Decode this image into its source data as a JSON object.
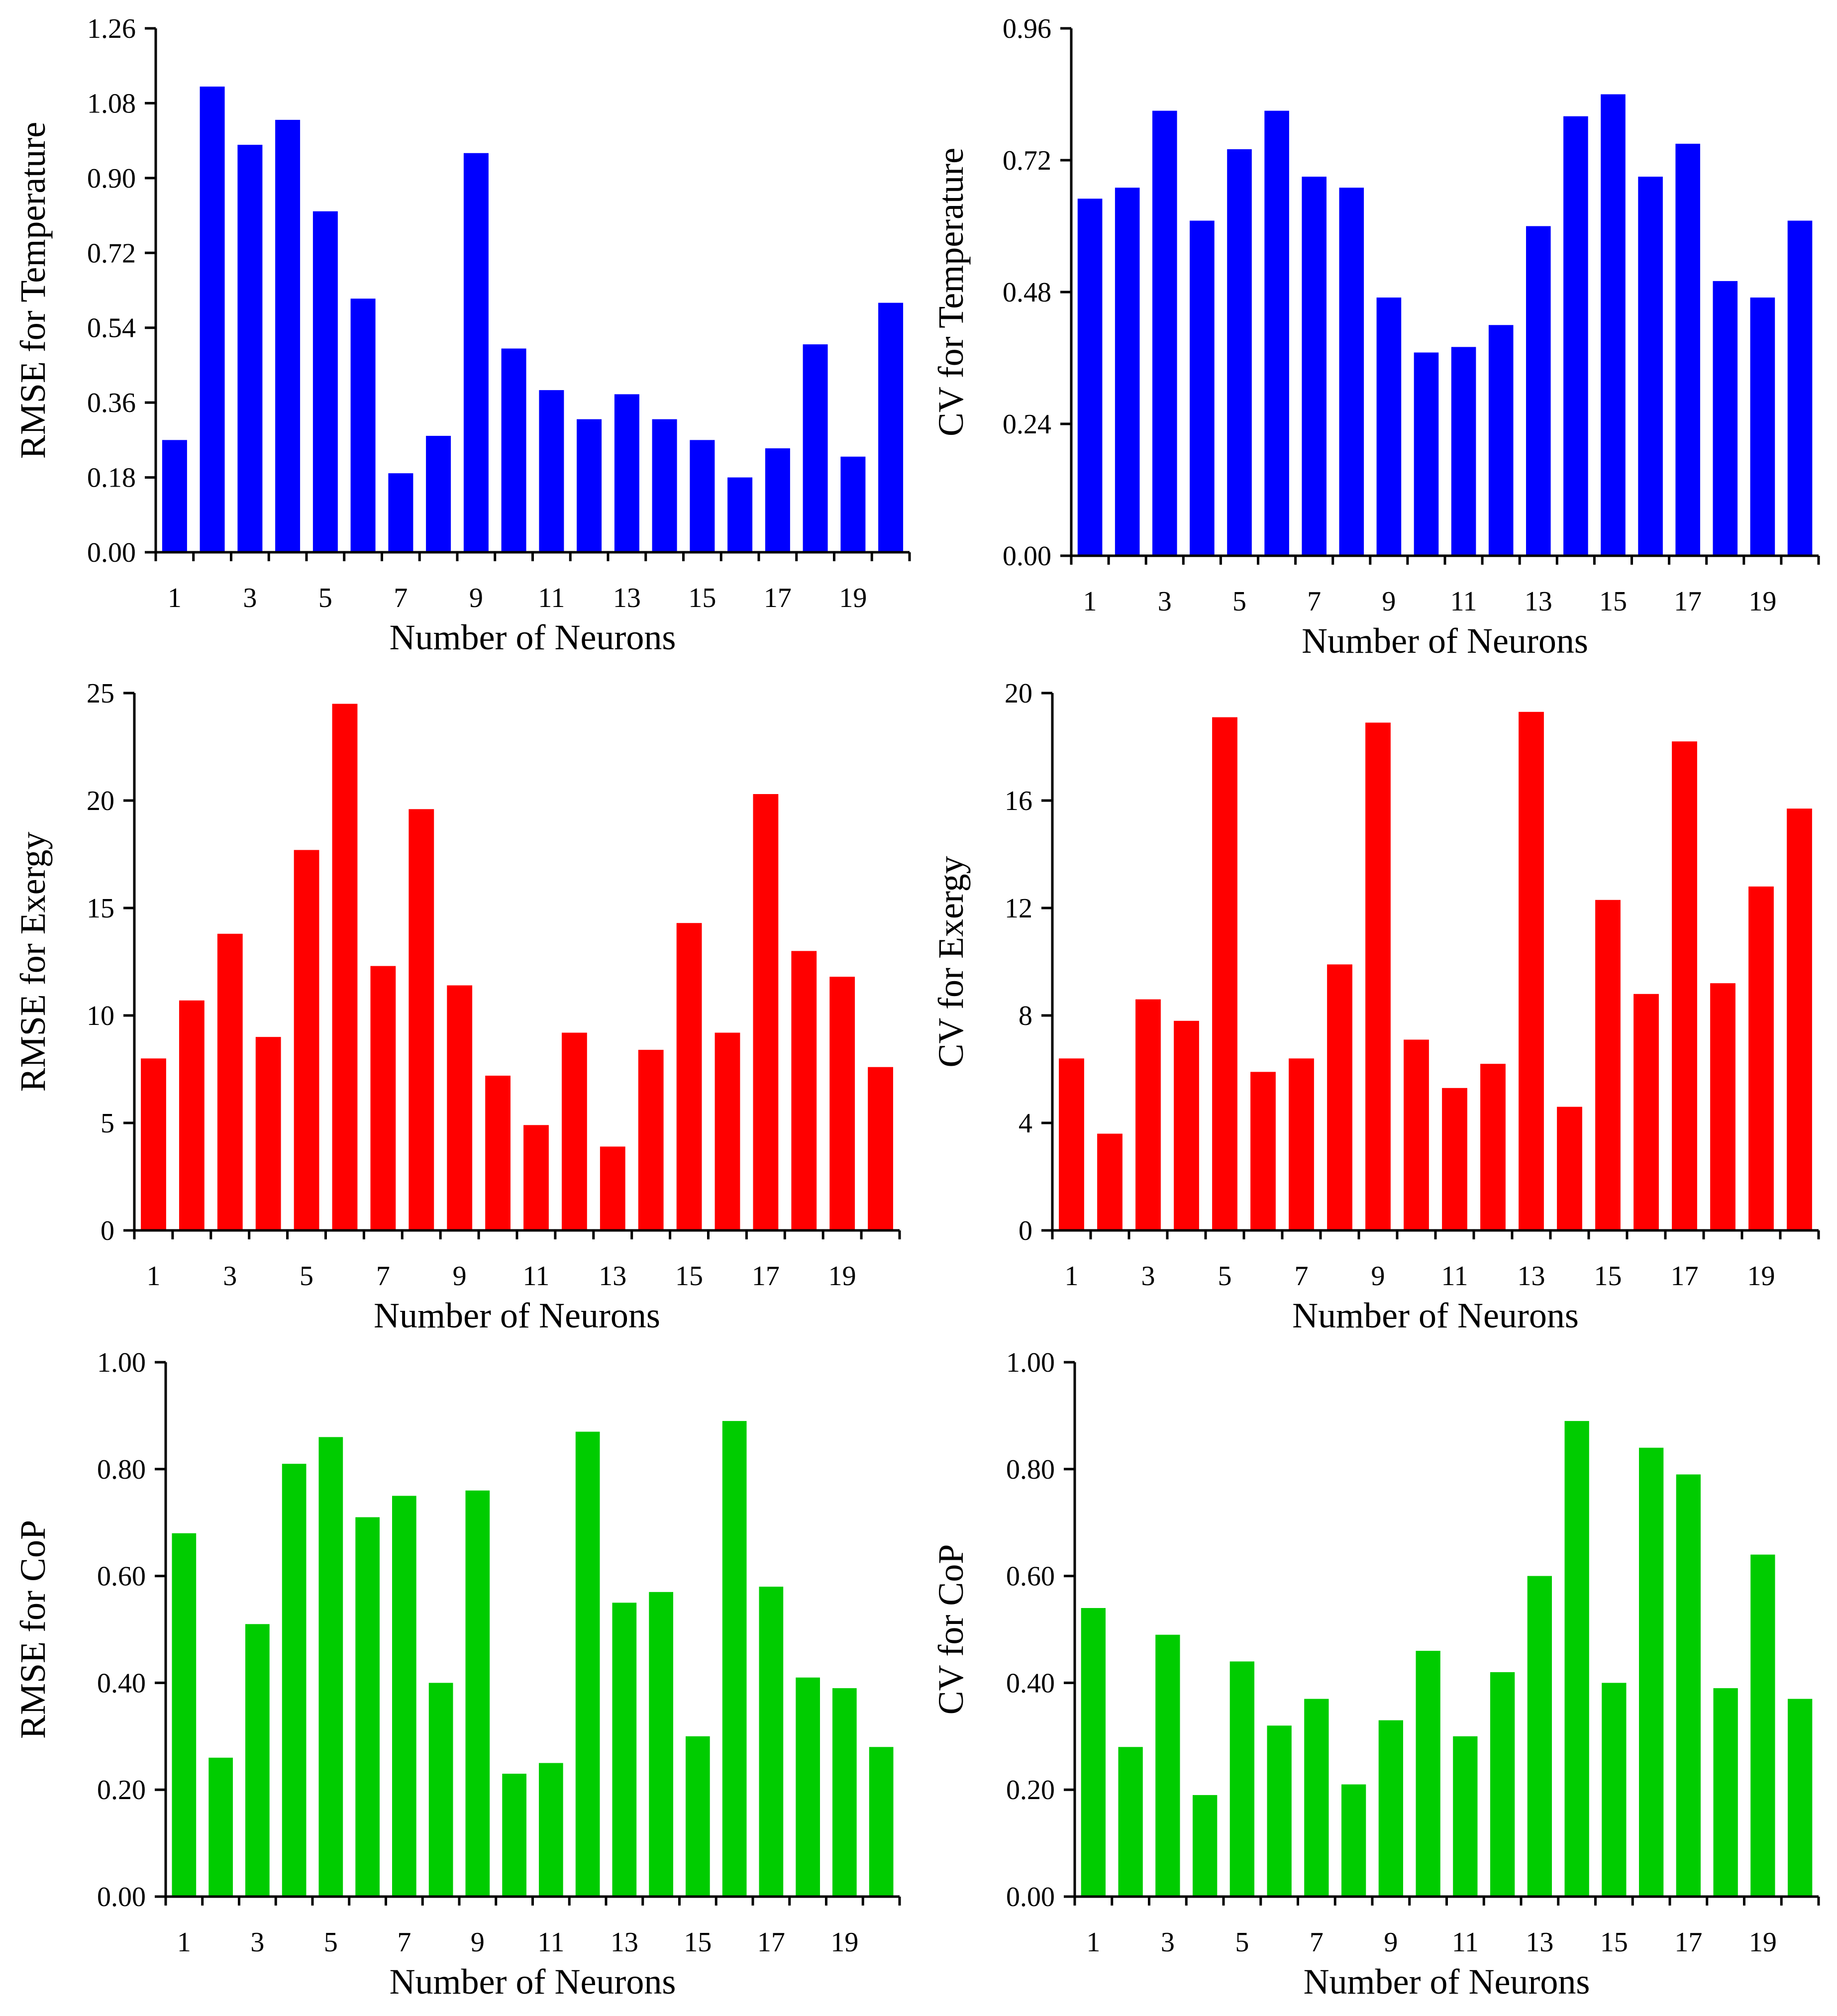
{
  "chart_data": [
    {
      "type": "bar",
      "id": "rmse-temperature",
      "title": "",
      "xlabel": "Number of Neurons",
      "ylabel": "RMSE for Temperature",
      "color": "#0000ff",
      "categories": [
        1,
        2,
        3,
        4,
        5,
        6,
        7,
        8,
        9,
        10,
        11,
        12,
        13,
        14,
        15,
        16,
        17,
        18,
        19,
        20
      ],
      "values": [
        0.27,
        1.12,
        0.98,
        1.04,
        0.82,
        0.61,
        0.19,
        0.28,
        0.96,
        0.49,
        0.39,
        0.32,
        0.38,
        0.32,
        0.27,
        0.18,
        0.25,
        0.5,
        0.23,
        0.6
      ],
      "yticks": [
        "0.00",
        "0.18",
        "0.36",
        "0.54",
        "0.72",
        "0.90",
        "1.08",
        "1.26"
      ],
      "xticks": [
        "1",
        "3",
        "5",
        "7",
        "9",
        "11",
        "13",
        "15",
        "17",
        "19"
      ],
      "ylim": [
        0,
        1.26
      ]
    },
    {
      "type": "bar",
      "id": "cv-temperature",
      "title": "",
      "xlabel": "Number of Neurons",
      "ylabel": "CV for Temperature",
      "color": "#0000ff",
      "categories": [
        1,
        2,
        3,
        4,
        5,
        6,
        7,
        8,
        9,
        10,
        11,
        12,
        13,
        14,
        15,
        16,
        17,
        18,
        19,
        20
      ],
      "values": [
        0.65,
        0.67,
        0.81,
        0.61,
        0.74,
        0.81,
        0.69,
        0.67,
        0.47,
        0.37,
        0.38,
        0.42,
        0.6,
        0.8,
        0.84,
        0.69,
        0.75,
        0.5,
        0.47,
        0.61
      ],
      "yticks": [
        "0.00",
        "0.24",
        "0.48",
        "0.72",
        "0.96"
      ],
      "xticks": [
        "1",
        "3",
        "5",
        "7",
        "9",
        "11",
        "13",
        "15",
        "17",
        "19"
      ],
      "ylim": [
        0,
        0.96
      ]
    },
    {
      "type": "bar",
      "id": "rmse-exergy",
      "title": "",
      "xlabel": "Number of Neurons",
      "ylabel": "RMSE for Exergy",
      "color": "#ff0000",
      "categories": [
        1,
        2,
        3,
        4,
        5,
        6,
        7,
        8,
        9,
        10,
        11,
        12,
        13,
        14,
        15,
        16,
        17,
        18,
        19,
        20
      ],
      "values": [
        8.0,
        10.7,
        13.8,
        9.0,
        17.7,
        24.5,
        12.3,
        19.6,
        11.4,
        7.2,
        4.9,
        9.2,
        3.9,
        8.4,
        14.3,
        9.2,
        20.3,
        13.0,
        11.8,
        7.6
      ],
      "yticks": [
        "0",
        "5",
        "10",
        "15",
        "20",
        "25"
      ],
      "xticks": [
        "1",
        "3",
        "5",
        "7",
        "9",
        "11",
        "13",
        "15",
        "17",
        "19"
      ],
      "ylim": [
        0,
        25
      ]
    },
    {
      "type": "bar",
      "id": "cv-exergy",
      "title": "",
      "xlabel": "Number of Neurons",
      "ylabel": "CV for Exergy",
      "color": "#ff0000",
      "categories": [
        1,
        2,
        3,
        4,
        5,
        6,
        7,
        8,
        9,
        10,
        11,
        12,
        13,
        14,
        15,
        16,
        17,
        18,
        19,
        20
      ],
      "values": [
        6.4,
        3.6,
        8.6,
        7.8,
        19.1,
        5.9,
        6.4,
        9.9,
        18.9,
        7.1,
        5.3,
        6.2,
        19.3,
        4.6,
        12.3,
        8.8,
        18.2,
        9.2,
        12.8,
        15.7
      ],
      "yticks": [
        "0",
        "4",
        "8",
        "12",
        "16",
        "20"
      ],
      "xticks": [
        "1",
        "3",
        "5",
        "7",
        "9",
        "11",
        "13",
        "15",
        "17",
        "19"
      ],
      "ylim": [
        0,
        20
      ]
    },
    {
      "type": "bar",
      "id": "rmse-cop",
      "title": "",
      "xlabel": "Number of Neurons",
      "ylabel": "RMSE for CoP",
      "color": "#00cc00",
      "categories": [
        1,
        2,
        3,
        4,
        5,
        6,
        7,
        8,
        9,
        10,
        11,
        12,
        13,
        14,
        15,
        16,
        17,
        18,
        19,
        20
      ],
      "values": [
        0.68,
        0.26,
        0.51,
        0.81,
        0.86,
        0.71,
        0.75,
        0.4,
        0.76,
        0.23,
        0.25,
        0.87,
        0.55,
        0.57,
        0.3,
        0.89,
        0.58,
        0.41,
        0.39,
        0.28
      ],
      "yticks": [
        "0.00",
        "0.20",
        "0.40",
        "0.60",
        "0.80",
        "1.00"
      ],
      "xticks": [
        "1",
        "3",
        "5",
        "7",
        "9",
        "11",
        "13",
        "15",
        "17",
        "19"
      ],
      "ylim": [
        0,
        1.0
      ]
    },
    {
      "type": "bar",
      "id": "cv-cop",
      "title": "",
      "xlabel": "Number of Neurons",
      "ylabel": "CV for CoP",
      "color": "#00cc00",
      "categories": [
        1,
        2,
        3,
        4,
        5,
        6,
        7,
        8,
        9,
        10,
        11,
        12,
        13,
        14,
        15,
        16,
        17,
        18,
        19,
        20
      ],
      "values": [
        0.54,
        0.28,
        0.49,
        0.19,
        0.44,
        0.32,
        0.37,
        0.21,
        0.33,
        0.46,
        0.3,
        0.42,
        0.6,
        0.89,
        0.4,
        0.84,
        0.79,
        0.39,
        0.64,
        0.37
      ],
      "yticks": [
        "0.00",
        "0.20",
        "0.40",
        "0.60",
        "0.80",
        "1.00"
      ],
      "xticks": [
        "1",
        "3",
        "5",
        "7",
        "9",
        "11",
        "13",
        "15",
        "17",
        "19"
      ],
      "ylim": [
        0,
        1.0
      ]
    }
  ]
}
